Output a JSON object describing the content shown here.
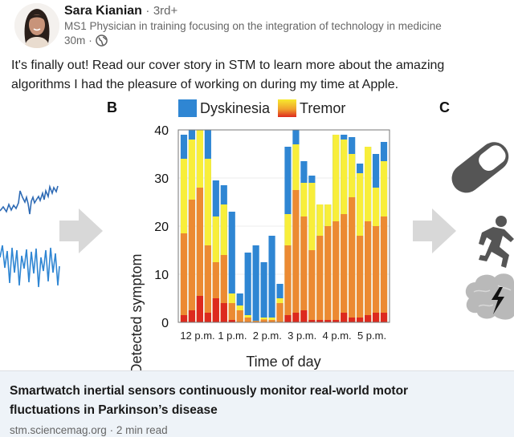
{
  "post": {
    "author": {
      "name": "Sara Kianian",
      "degree": "3rd+",
      "headline": "MS1 Physician in training focusing on the integration of technology in medicine",
      "time_ago": "30m",
      "visibility_icon": "globe-icon"
    },
    "text_line1": "It's finally out! Read our cover story in STM to learn more about the amazing",
    "text_line2": "algorithms I had the pleasure of working on during my time at Apple."
  },
  "figure": {
    "panel_b_label": "B",
    "panel_c_label": "C",
    "left_signals": [
      "dyskinesia-waveform",
      "tremor-waveform"
    ],
    "right_icons": [
      "pill-icon",
      "running-person-icon",
      "brain-lightning-icon"
    ],
    "colors": {
      "dyskinesia": "#2f86d3",
      "tremor_yellow": "#f8ee3a",
      "tremor_orange": "#ec8a32",
      "tremor_red": "#dd2a1e",
      "arrow": "#d6d6d6",
      "icon_dark": "#555555",
      "icon_light": "#b9b9b9"
    }
  },
  "chart_data": {
    "type": "bar",
    "stacked": true,
    "title": "",
    "xlabel": "Time of day",
    "ylabel": "% Detected symptom",
    "ylim": [
      0,
      40
    ],
    "yticks": [
      0,
      10,
      20,
      30,
      40
    ],
    "xtick_labels": [
      "12 p.m.",
      "1 p.m.",
      "2 p.m.",
      "3 p.m.",
      "4 p.m.",
      "5 p.m."
    ],
    "legend": [
      {
        "name": "Dyskinesia",
        "swatch": "dyskinesia"
      },
      {
        "name": "Tremor",
        "swatch": "tremor-gradient"
      }
    ],
    "legend_position": "top",
    "grid": true,
    "note": "Stack tops (cumulative %) per time bin: red (severe tremor), orange (moderate tremor), yellow (mild tremor), blue (dyskinesia)",
    "bars": [
      {
        "red": 1.5,
        "orange": 18.5,
        "yellow": 34.0,
        "blue": 39.0
      },
      {
        "red": 2.5,
        "orange": 25.5,
        "yellow": 38.0,
        "blue": 40.0
      },
      {
        "red": 5.5,
        "orange": 28.0,
        "yellow": 40.0,
        "blue": 40.0
      },
      {
        "red": 2.0,
        "orange": 16.0,
        "yellow": 34.0,
        "blue": 40.0
      },
      {
        "red": 5.0,
        "orange": 12.5,
        "yellow": 22.0,
        "blue": 29.5
      },
      {
        "red": 4.0,
        "orange": 14.0,
        "yellow": 24.5,
        "blue": 28.5
      },
      {
        "red": 0.5,
        "orange": 4.0,
        "yellow": 6.0,
        "blue": 23.0
      },
      {
        "red": 0.0,
        "orange": 2.5,
        "yellow": 3.5,
        "blue": 6.0
      },
      {
        "red": 0.0,
        "orange": 1.0,
        "yellow": 1.5,
        "blue": 14.5
      },
      {
        "red": 0.0,
        "orange": 0.3,
        "yellow": 0.3,
        "blue": 16.0
      },
      {
        "red": 0.0,
        "orange": 0.6,
        "yellow": 1.0,
        "blue": 12.5
      },
      {
        "red": 0.0,
        "orange": 0.5,
        "yellow": 1.0,
        "blue": 18.0
      },
      {
        "red": 0.0,
        "orange": 4.0,
        "yellow": 5.0,
        "blue": 8.0
      },
      {
        "red": 1.5,
        "orange": 16.0,
        "yellow": 22.5,
        "blue": 36.5
      },
      {
        "red": 2.0,
        "orange": 27.5,
        "yellow": 37.0,
        "blue": 40.0
      },
      {
        "red": 2.5,
        "orange": 22.0,
        "yellow": 29.0,
        "blue": 33.5
      },
      {
        "red": 0.5,
        "orange": 15.0,
        "yellow": 29.0,
        "blue": 30.5
      },
      {
        "red": 0.5,
        "orange": 18.0,
        "yellow": 24.5,
        "blue": 24.5
      },
      {
        "red": 0.5,
        "orange": 20.0,
        "yellow": 24.5,
        "blue": 24.5
      },
      {
        "red": 0.5,
        "orange": 21.0,
        "yellow": 39.0,
        "blue": 39.0
      },
      {
        "red": 2.0,
        "orange": 22.5,
        "yellow": 38.0,
        "blue": 39.0
      },
      {
        "red": 1.0,
        "orange": 26.0,
        "yellow": 35.0,
        "blue": 38.5
      },
      {
        "red": 1.0,
        "orange": 18.0,
        "yellow": 31.0,
        "blue": 33.0
      },
      {
        "red": 1.5,
        "orange": 21.0,
        "yellow": 36.5,
        "blue": 36.5
      },
      {
        "red": 2.0,
        "orange": 20.0,
        "yellow": 28.0,
        "blue": 35.0
      },
      {
        "red": 2.0,
        "orange": 22.0,
        "yellow": 33.5,
        "blue": 37.5
      }
    ]
  },
  "link_card": {
    "title_line1": "Smartwatch inertial sensors continuously monitor real-world motor",
    "title_line2": "fluctuations in Parkinson’s disease",
    "source": "stm.sciencemag.org",
    "read_time": "2 min read",
    "separator": "·"
  },
  "separators": {
    "dot": "·"
  }
}
